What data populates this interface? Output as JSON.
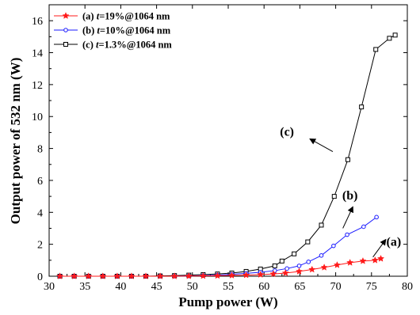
{
  "chart_data": {
    "type": "line",
    "xlabel": "Pump power (W)",
    "ylabel": "Output power of 532 nm (W)",
    "xlim": [
      30,
      80
    ],
    "ylim": [
      0,
      17
    ],
    "xticks": [
      30,
      35,
      40,
      45,
      50,
      55,
      60,
      65,
      70,
      75,
      80
    ],
    "yticks": [
      0,
      2,
      4,
      6,
      8,
      10,
      12,
      14,
      16
    ],
    "grid": false,
    "legend_position": "top-left",
    "series": [
      {
        "name": "(a) t=19%@1064 nm",
        "legend_prefix": "(a) ",
        "legend_italic": "t",
        "legend_suffix": "=19%@1064 nm",
        "color": "#ff1a1a",
        "marker": "star",
        "x": [
          31.5,
          33.5,
          35.5,
          37.5,
          39.5,
          41.5,
          43.5,
          45.5,
          47.5,
          49.5,
          51.5,
          53.5,
          55.5,
          57.5,
          59.5,
          61.3,
          63,
          64.9,
          66.7,
          68.4,
          70.2,
          72,
          73.8,
          75.5,
          76.3
        ],
        "y": [
          0,
          0,
          0,
          0,
          0,
          0,
          0,
          0,
          0,
          0.01,
          0.02,
          0.03,
          0.05,
          0.07,
          0.1,
          0.14,
          0.2,
          0.3,
          0.42,
          0.55,
          0.7,
          0.85,
          0.95,
          1.0,
          1.1
        ]
      },
      {
        "name": "(b) t=10%@1064 nm",
        "legend_prefix": "(b) ",
        "legend_italic": "t",
        "legend_suffix": "=10%@1064 nm",
        "color": "#1a1aff",
        "marker": "circle",
        "x": [
          31.5,
          33.5,
          35.5,
          37.5,
          39.5,
          41.5,
          43.5,
          45.5,
          47.5,
          49.5,
          51.5,
          53.5,
          55.5,
          57.5,
          59.5,
          61.5,
          63.2,
          64.9,
          66.2,
          68,
          69.7,
          71.6,
          73.9,
          75.7
        ],
        "y": [
          0,
          0,
          0,
          0,
          0,
          0,
          0,
          0,
          0,
          0.02,
          0.04,
          0.07,
          0.12,
          0.18,
          0.25,
          0.35,
          0.48,
          0.65,
          0.9,
          1.3,
          1.9,
          2.6,
          3.1,
          3.7
        ]
      },
      {
        "name": "(c) t=1.3%@1064 nm",
        "legend_prefix": "(c) ",
        "legend_italic": "t",
        "legend_suffix": "=1.3%@1064 nm",
        "color": "#000000",
        "marker": "square",
        "x": [
          31.5,
          33.5,
          35.5,
          37.5,
          39.5,
          41.5,
          43.5,
          45.5,
          47.5,
          49.5,
          51.5,
          53.5,
          55.5,
          57.5,
          59.5,
          61.5,
          62.5,
          64.2,
          66.1,
          68,
          69.8,
          71.7,
          73.6,
          75.6,
          77.5,
          78.3
        ],
        "y": [
          0,
          0,
          0,
          0,
          0,
          0,
          0,
          0.02,
          0.04,
          0.07,
          0.1,
          0.14,
          0.2,
          0.3,
          0.45,
          0.65,
          0.95,
          1.4,
          2.15,
          3.2,
          5.0,
          7.3,
          10.6,
          14.2,
          14.9,
          15.1
        ]
      }
    ],
    "annotations": [
      {
        "label": "(a)",
        "text_x": 78.1,
        "text_y": 1.9,
        "arrow_from": [
          75.2,
          1.2
        ],
        "arrow_to": [
          77.0,
          2.3
        ]
      },
      {
        "label": "(b)",
        "text_x": 72.0,
        "text_y": 4.8,
        "arrow_from": [
          71.0,
          3.0
        ],
        "arrow_to": [
          72.4,
          4.35
        ]
      },
      {
        "label": "(c)",
        "text_x": 63.2,
        "text_y": 8.8,
        "arrow_from": [
          69.6,
          7.8
        ],
        "arrow_to": [
          66.4,
          8.6
        ]
      }
    ]
  }
}
